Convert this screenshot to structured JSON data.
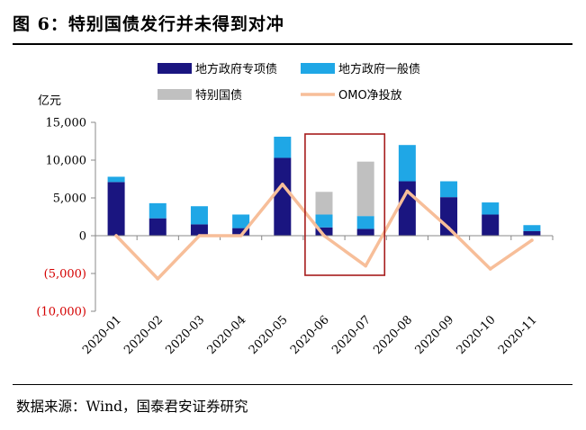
{
  "header": {
    "title": "图 6：特别国债发行并未得到对冲",
    "source": "数据来源：Wind，国泰君安证券研究"
  },
  "chart_data": {
    "type": "bar",
    "stacked": true,
    "unit_label": "亿元",
    "categories": [
      "2020-01",
      "2020-02",
      "2020-03",
      "2020-04",
      "2020-05",
      "2020-06",
      "2020-07",
      "2020-08",
      "2020-09",
      "2020-10",
      "2020-11"
    ],
    "series": [
      {
        "name": "地方政府专项债",
        "kind": "bar",
        "color": "#1a1580",
        "values": [
          7100,
          2300,
          1500,
          1000,
          10300,
          1100,
          900,
          7200,
          5100,
          2800,
          600
        ]
      },
      {
        "name": "地方政府一般债",
        "kind": "bar",
        "color": "#1fa7e6",
        "values": [
          700,
          2000,
          2400,
          1800,
          2800,
          1700,
          1700,
          4800,
          2100,
          1600,
          800
        ]
      },
      {
        "name": "特别国债",
        "kind": "bar",
        "color": "#c0c0c0",
        "values": [
          0,
          0,
          0,
          0,
          0,
          3000,
          7200,
          0,
          0,
          0,
          0
        ]
      },
      {
        "name": "OMO净投放",
        "kind": "line",
        "color": "#f7be99",
        "values": [
          0,
          -5700,
          0,
          0,
          6800,
          0,
          -4000,
          5900,
          1000,
          -4400,
          -600
        ]
      }
    ],
    "ylim": [
      -10000,
      15000
    ],
    "yticks": [
      {
        "value": 15000,
        "label": "15,000",
        "color": "#000000"
      },
      {
        "value": 10000,
        "label": "10,000",
        "color": "#000000"
      },
      {
        "value": 5000,
        "label": "5,000",
        "color": "#000000"
      },
      {
        "value": 0,
        "label": "0",
        "color": "#000000"
      },
      {
        "value": -5000,
        "label": "(5,000)",
        "color": "#d40000"
      },
      {
        "value": -10000,
        "label": "(10,000)",
        "color": "#d40000"
      }
    ],
    "highlight": {
      "categories": [
        "2020-06",
        "2020-07"
      ],
      "color": "#a61c1c"
    },
    "legend_position": "top"
  }
}
